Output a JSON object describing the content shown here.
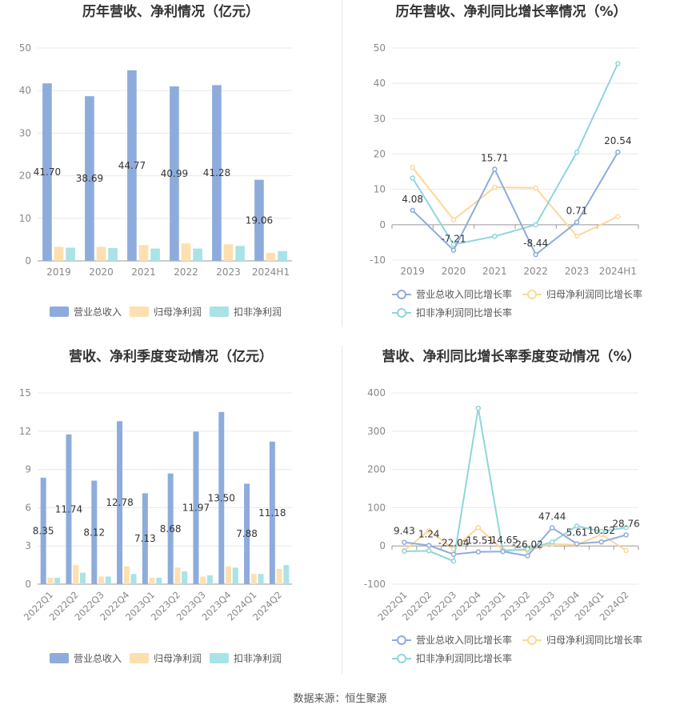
{
  "source_prefix": "数据来源：",
  "source_name": "恒生聚源",
  "colors": {
    "revenue": "#8eacdb",
    "net_profit": "#fde0b0",
    "deducted_profit": "#a9e3e6",
    "revenue_line": "#8eacdb",
    "net_line": "#fdd79a",
    "deducted_line": "#8fd6da",
    "grid": "#e8e8e8",
    "axis_text": "#888888",
    "title": "#333333"
  },
  "chart_data": [
    {
      "id": "annual-amount",
      "type": "bar",
      "title": "历年营收、净利情况（亿元）",
      "categories": [
        "2019",
        "2020",
        "2021",
        "2022",
        "2023",
        "2024H1"
      ],
      "ylim": [
        0,
        50
      ],
      "yticks": [
        0,
        10,
        20,
        30,
        40,
        50
      ],
      "series": [
        {
          "name": "营业总收入",
          "values": [
            41.7,
            38.69,
            44.77,
            40.99,
            41.28,
            19.06
          ],
          "labels": [
            "41.70",
            "38.69",
            "44.77",
            "40.99",
            "41.28",
            "19.06"
          ]
        },
        {
          "name": "归母净利润",
          "values": [
            3.3,
            3.3,
            3.7,
            4.1,
            3.9,
            1.9
          ]
        },
        {
          "name": "扣非净利润",
          "values": [
            3.1,
            3.0,
            2.9,
            2.9,
            3.5,
            2.3
          ]
        }
      ]
    },
    {
      "id": "annual-growth",
      "type": "line",
      "title": "历年营收、净利同比增长率情况（%）",
      "categories": [
        "2019",
        "2020",
        "2021",
        "2022",
        "2023",
        "2024H1"
      ],
      "ylim": [
        -10,
        50
      ],
      "yticks": [
        -10,
        0,
        10,
        20,
        30,
        40,
        50
      ],
      "series": [
        {
          "name": "营业总收入同比增长率",
          "values": [
            4.08,
            -7.21,
            15.71,
            -8.44,
            0.71,
            20.54
          ],
          "labels": [
            "4.08",
            "-7.21",
            "15.71",
            "-8.44",
            "0.71",
            "20.54"
          ]
        },
        {
          "name": "归母净利润同比增长率",
          "values": [
            16.2,
            1.4,
            10.6,
            10.4,
            -3.2,
            2.3
          ]
        },
        {
          "name": "扣非净利润同比增长率",
          "values": [
            13.2,
            -5.6,
            -3.3,
            0.0,
            20.5,
            45.6
          ]
        }
      ]
    },
    {
      "id": "quarterly-amount",
      "type": "bar",
      "title": "营收、净利季度变动情况（亿元）",
      "categories": [
        "2022Q1",
        "2022Q2",
        "2022Q3",
        "2022Q4",
        "2023Q1",
        "2023Q2",
        "2023Q3",
        "2023Q4",
        "2024Q1",
        "2024Q2"
      ],
      "ylim": [
        0,
        15
      ],
      "yticks": [
        0,
        3,
        6,
        9,
        12,
        15
      ],
      "series": [
        {
          "name": "营业总收入",
          "values": [
            8.35,
            11.74,
            8.12,
            12.78,
            7.13,
            8.68,
            11.97,
            13.5,
            7.88,
            11.18
          ],
          "labels": [
            "8.35",
            "11.74",
            "8.12",
            "12.78",
            "7.13",
            "8.68",
            "11.97",
            "13.50",
            "7.88",
            "11.18"
          ]
        },
        {
          "name": "归母净利润",
          "values": [
            0.5,
            1.5,
            0.6,
            1.4,
            0.5,
            1.3,
            0.6,
            1.4,
            0.8,
            1.2
          ]
        },
        {
          "name": "扣非净利润",
          "values": [
            0.5,
            0.9,
            0.6,
            0.8,
            0.5,
            1.0,
            0.7,
            1.3,
            0.8,
            1.5
          ]
        }
      ]
    },
    {
      "id": "quarterly-growth",
      "type": "line",
      "title": "营收、净利同比增长率季度变动情况（%）",
      "categories": [
        "2022Q1",
        "2022Q2",
        "2022Q3",
        "2022Q4",
        "2023Q1",
        "2023Q2",
        "2023Q3",
        "2023Q4",
        "2024Q1",
        "2024Q2"
      ],
      "ylim": [
        -100,
        400
      ],
      "yticks": [
        -100,
        0,
        100,
        200,
        300,
        400
      ],
      "series": [
        {
          "name": "营业总收入同比增长率",
          "values": [
            9.43,
            1.24,
            -22.04,
            -15.51,
            -14.65,
            -26.02,
            47.44,
            5.61,
            10.52,
            28.76
          ],
          "labels": [
            "9.43",
            "1.24",
            "-22.04",
            "-15.51",
            "-14.65",
            "-26.02",
            "47.44",
            "5.61",
            "10.52",
            "28.76"
          ]
        },
        {
          "name": "归母净利润同比增长率",
          "values": [
            -12,
            40,
            -8,
            48,
            -10,
            -12,
            5,
            3,
            30,
            -12
          ]
        },
        {
          "name": "扣非净利润同比增长率",
          "values": [
            -14,
            -13,
            -40,
            360,
            -14,
            -8,
            10,
            52,
            38,
            48
          ]
        }
      ]
    }
  ]
}
